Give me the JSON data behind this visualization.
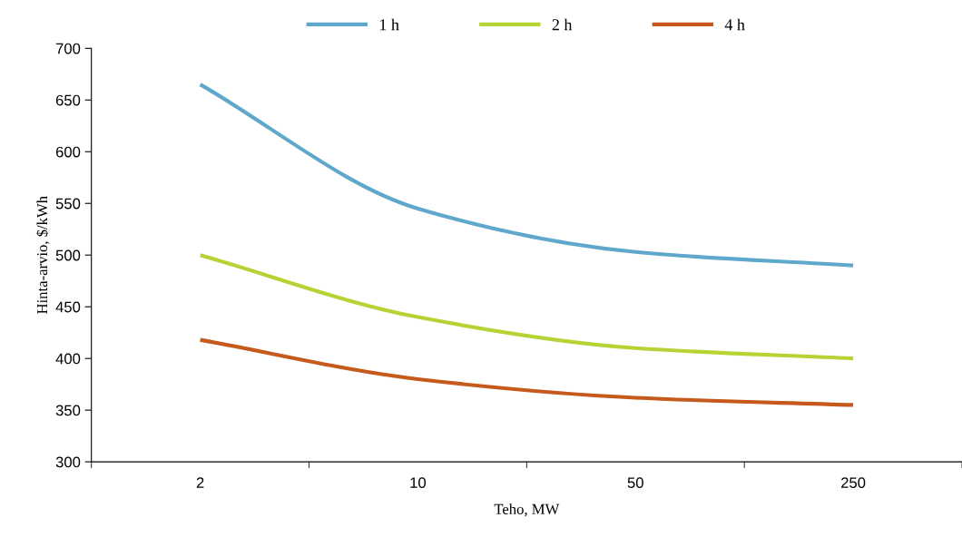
{
  "chart_data": {
    "type": "line",
    "xlabel": "Teho, MW",
    "ylabel": "Hinta-arvio, $/kWh",
    "categories": [
      "2",
      "10",
      "50",
      "250"
    ],
    "series": [
      {
        "name": "1 h",
        "color": "#5fa8cc",
        "values": [
          665,
          545,
          503,
          490
        ]
      },
      {
        "name": "2 h",
        "color": "#b5d334",
        "values": [
          500,
          440,
          410,
          400
        ]
      },
      {
        "name": "4 h",
        "color": "#c55a1c",
        "values": [
          418,
          380,
          362,
          355
        ]
      }
    ],
    "ylim": [
      300,
      700
    ],
    "yticks": [
      300,
      350,
      400,
      450,
      500,
      550,
      600,
      650,
      700
    ],
    "grid": false,
    "legend": "top",
    "marker": "none",
    "line_style": "solid"
  }
}
